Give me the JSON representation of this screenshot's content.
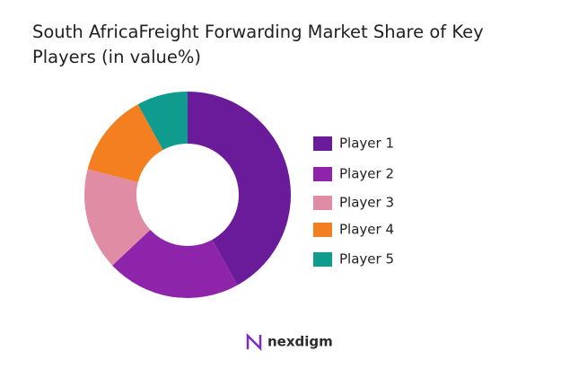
{
  "chart_data": {
    "type": "donut",
    "title": "South AfricaFreight Forwarding Market Share of Key Players (in value%)",
    "categories": [
      "Player 1",
      "Player 2",
      "Player 3",
      "Player 4",
      "Player 5"
    ],
    "values": [
      42,
      21,
      16,
      13,
      8
    ],
    "colors": [
      "#6a1b9a",
      "#8e24aa",
      "#e08ca4",
      "#f47f20",
      "#0f9b8e"
    ],
    "legend": "right"
  },
  "brand": "nexdigm"
}
